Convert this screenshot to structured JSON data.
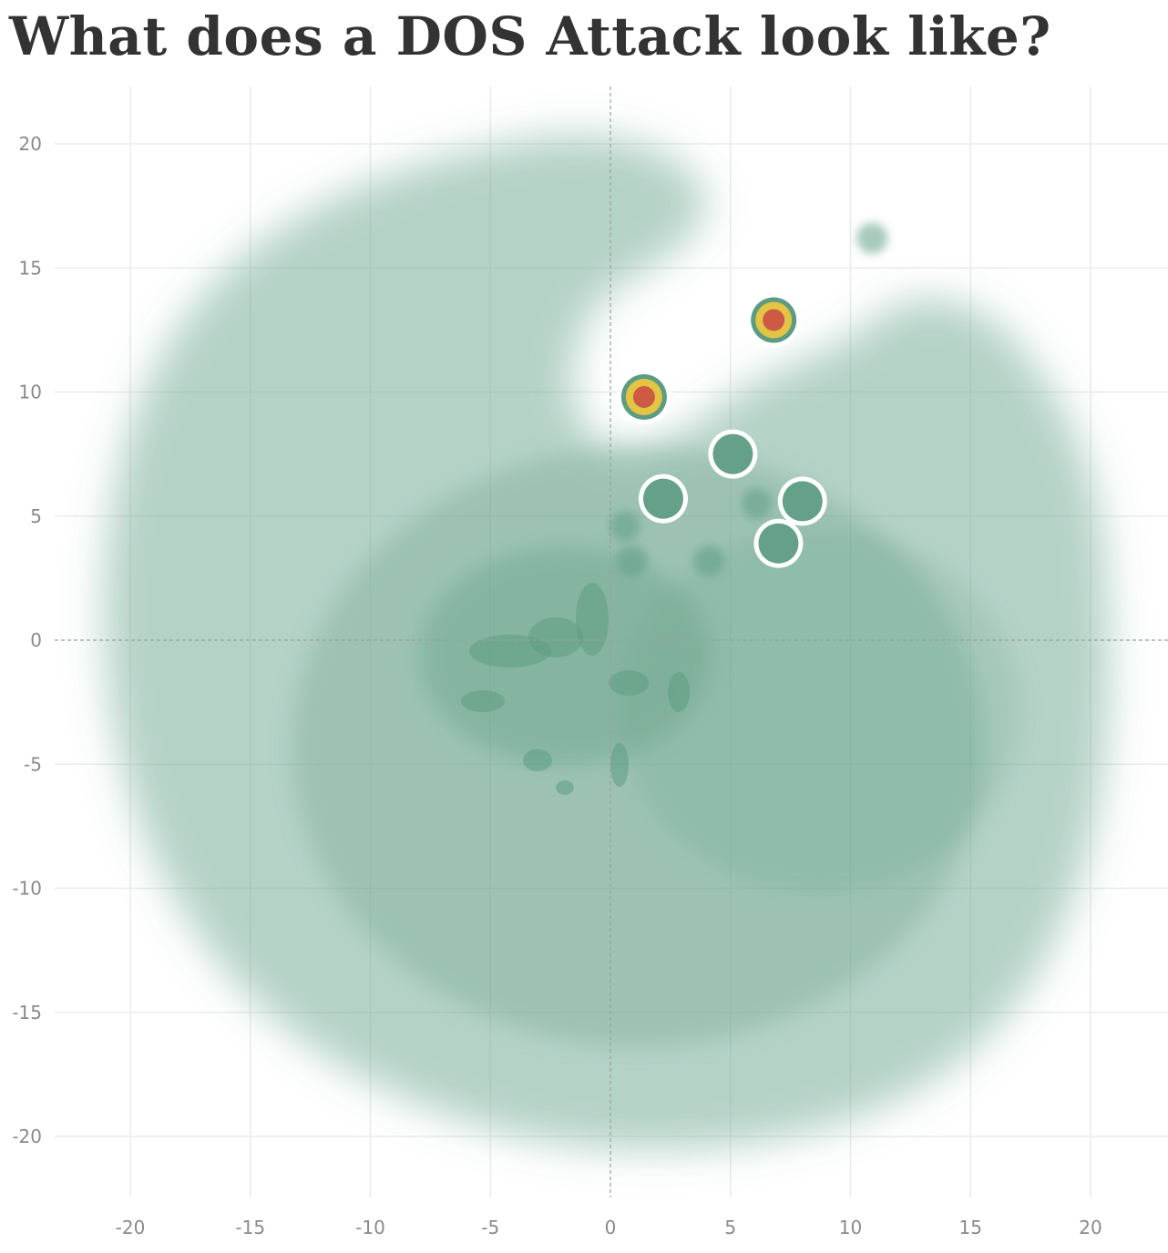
{
  "chart_data": {
    "type": "scatter",
    "title": "What does a DOS Attack look like?",
    "xlabel": "",
    "ylabel": "",
    "xlim": [
      -23.2,
      23.2
    ],
    "ylim": [
      -22.7,
      22.2
    ],
    "x_ticks": [
      -20,
      -15,
      -10,
      -5,
      0,
      5,
      10,
      15,
      20
    ],
    "y_ticks": [
      20,
      15,
      10,
      5,
      0,
      -5,
      -10,
      -15,
      -20
    ],
    "grid": true,
    "zero_lines": "dashed",
    "background_density": {
      "color": "#5c9c82",
      "description_shape": "broad point cloud around origin with an empty notch in the upper center"
    },
    "highlighted_points": [
      {
        "x": 6.8,
        "y": 12.9,
        "level": "high"
      },
      {
        "x": 1.4,
        "y": 9.8,
        "level": "high"
      },
      {
        "x": 5.1,
        "y": 7.5,
        "level": "medium"
      },
      {
        "x": 2.2,
        "y": 5.7,
        "level": "medium"
      },
      {
        "x": 8.0,
        "y": 5.6,
        "level": "medium"
      },
      {
        "x": 7.0,
        "y": 3.9,
        "level": "medium"
      },
      {
        "x": 6.1,
        "y": 5.5,
        "level": "low"
      },
      {
        "x": 0.6,
        "y": 4.6,
        "level": "low"
      },
      {
        "x": 10.9,
        "y": 16.2,
        "level": "low"
      },
      {
        "x": 0.9,
        "y": 3.2,
        "level": "low"
      },
      {
        "x": 4.1,
        "y": 3.2,
        "level": "low"
      }
    ],
    "colors": {
      "green": "#5c9c82",
      "yellow": "#e3c443",
      "red": "#cc5a45"
    }
  }
}
